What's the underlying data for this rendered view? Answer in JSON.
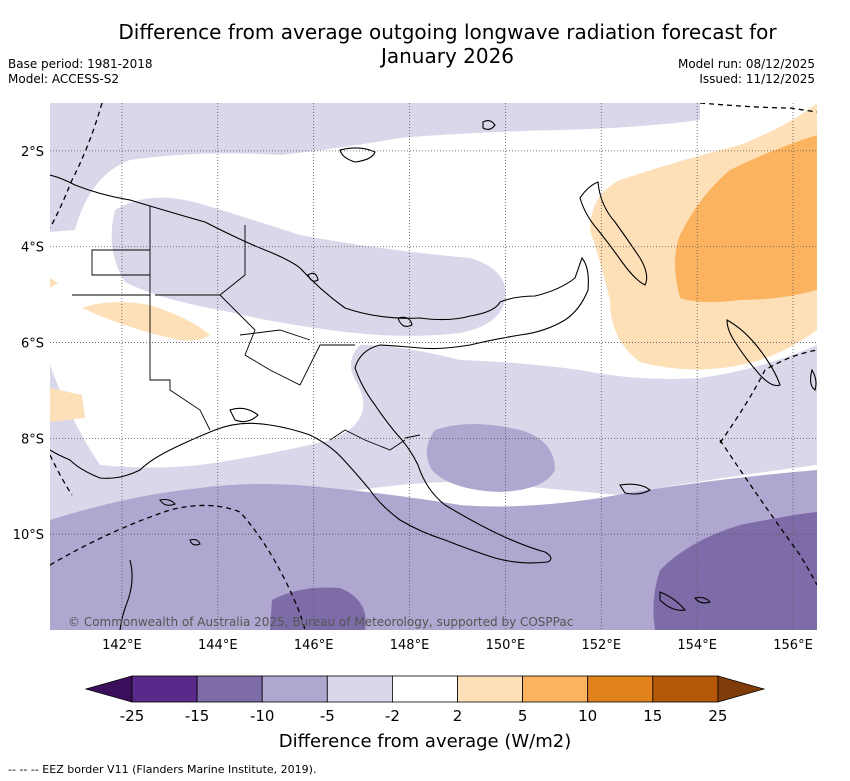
{
  "title": "Difference from average outgoing longwave radiation forecast for January 2026",
  "base_period": "Base period: 1981-2018",
  "model": "Model: ACCESS-S2",
  "model_run": "Model run: 08/12/2025",
  "issued": "Issued: 11/12/2025",
  "copyright": "© Commonwealth of Australia 2025, Bureau of Meteorology, supported by COSPPac",
  "footer_note": "-- -- -- EEZ border V11 (Flanders Marine Institute, 2019).",
  "map": {
    "lat_labels": [
      "2°S",
      "4°S",
      "6°S",
      "8°S",
      "10°S"
    ],
    "lon_labels": [
      "142°E",
      "144°E",
      "146°E",
      "148°E",
      "150°E",
      "152°E",
      "154°E",
      "156°E"
    ],
    "lat_values": [
      -2,
      -4,
      -6,
      -8,
      -10
    ],
    "lon_values": [
      142,
      144,
      146,
      148,
      150,
      152,
      154,
      156
    ],
    "extent": {
      "lon_min": 140.5,
      "lon_max": 156.5,
      "lat_max": -1,
      "lat_min": -12
    }
  },
  "colorbar": {
    "title": "Difference from average (W/m2)",
    "boundaries": [
      "-25",
      "-15",
      "-10",
      "-5",
      "-2",
      "2",
      "5",
      "10",
      "15",
      "25"
    ],
    "colors": [
      "#3b0f5c",
      "#5a2a8a",
      "#7e6ca9",
      "#b0a7d0",
      "#d8d8ea",
      "#ffffff",
      "#fde0b7",
      "#fbb35f",
      "#e2821b",
      "#b35806",
      "#7f3b08"
    ]
  },
  "colors": {
    "neg_strong": "#7e6ca9",
    "neg_mid": "#b0a7d0",
    "neg_light": "#d8d8ea",
    "neutral": "#ffffff",
    "pos_light": "#fde0b7",
    "pos_mid": "#fbb35f"
  }
}
